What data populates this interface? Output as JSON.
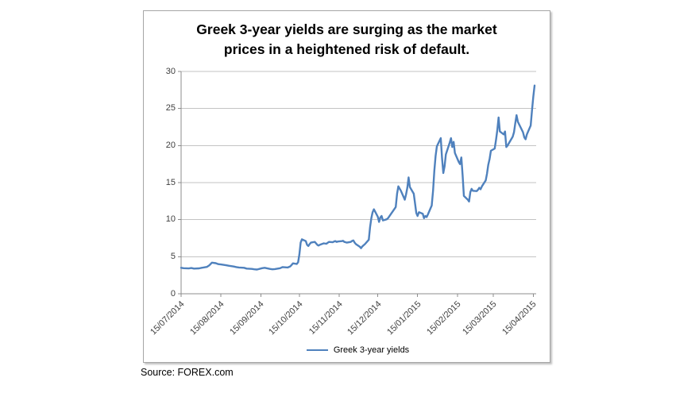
{
  "figure": {
    "title_lines": [
      "Greek 3-year yields are surging as the market",
      "prices in a heightened risk of default."
    ],
    "source": "Source: FOREX.com"
  },
  "chart_data": {
    "type": "line",
    "title": "Greek 3-year yields are surging as the market prices in a heightened risk of default.",
    "xlabel": "",
    "ylabel": "",
    "ylim": [
      0,
      30
    ],
    "ytick_step": 5,
    "grid": "horizontal",
    "legend_position": "bottom",
    "line_color": "#4F81BD",
    "axis_color": "#8c8c8c",
    "grid_color": "#c3c3c3",
    "x_ticks": [
      "15/07/2014",
      "15/08/2014",
      "15/09/2014",
      "15/10/2014",
      "15/11/2014",
      "15/12/2014",
      "15/01/2015",
      "15/02/2015",
      "15/03/2015",
      "15/04/2015"
    ],
    "x_range": [
      "15/07/2014",
      "16/04/2015"
    ],
    "series": [
      {
        "name": "Greek 3-year yields",
        "color": "#4F81BD",
        "points": [
          [
            "15/07/2014",
            3.5
          ],
          [
            "17/07/2014",
            3.45
          ],
          [
            "21/07/2014",
            3.42
          ],
          [
            "23/07/2014",
            3.47
          ],
          [
            "25/07/2014",
            3.4
          ],
          [
            "29/07/2014",
            3.43
          ],
          [
            "31/07/2014",
            3.5
          ],
          [
            "04/08/2014",
            3.62
          ],
          [
            "06/08/2014",
            3.85
          ],
          [
            "08/08/2014",
            4.2
          ],
          [
            "11/08/2014",
            4.12
          ],
          [
            "13/08/2014",
            4.0
          ],
          [
            "15/08/2014",
            3.95
          ],
          [
            "19/08/2014",
            3.85
          ],
          [
            "21/08/2014",
            3.78
          ],
          [
            "25/08/2014",
            3.68
          ],
          [
            "27/08/2014",
            3.6
          ],
          [
            "29/08/2014",
            3.55
          ],
          [
            "02/09/2014",
            3.5
          ],
          [
            "04/09/2014",
            3.4
          ],
          [
            "08/09/2014",
            3.35
          ],
          [
            "10/09/2014",
            3.3
          ],
          [
            "12/09/2014",
            3.27
          ],
          [
            "16/09/2014",
            3.45
          ],
          [
            "18/09/2014",
            3.5
          ],
          [
            "22/09/2014",
            3.35
          ],
          [
            "24/09/2014",
            3.3
          ],
          [
            "26/09/2014",
            3.33
          ],
          [
            "30/09/2014",
            3.45
          ],
          [
            "02/10/2014",
            3.6
          ],
          [
            "06/10/2014",
            3.55
          ],
          [
            "08/10/2014",
            3.7
          ],
          [
            "09/10/2014",
            3.9
          ],
          [
            "10/10/2014",
            4.1
          ],
          [
            "13/10/2014",
            4.02
          ],
          [
            "14/10/2014",
            4.25
          ],
          [
            "15/10/2014",
            5.3
          ],
          [
            "16/10/2014",
            6.9
          ],
          [
            "17/10/2014",
            7.35
          ],
          [
            "20/10/2014",
            7.1
          ],
          [
            "21/10/2014",
            6.6
          ],
          [
            "22/10/2014",
            6.45
          ],
          [
            "23/10/2014",
            6.7
          ],
          [
            "24/10/2014",
            6.9
          ],
          [
            "27/10/2014",
            7.0
          ],
          [
            "28/10/2014",
            6.8
          ],
          [
            "29/10/2014",
            6.6
          ],
          [
            "30/10/2014",
            6.5
          ],
          [
            "31/10/2014",
            6.62
          ],
          [
            "03/11/2014",
            6.8
          ],
          [
            "05/11/2014",
            6.75
          ],
          [
            "07/11/2014",
            7.0
          ],
          [
            "10/11/2014",
            6.95
          ],
          [
            "11/11/2014",
            7.05
          ],
          [
            "12/11/2014",
            7.1
          ],
          [
            "13/11/2014",
            7.0
          ],
          [
            "14/11/2014",
            7.05
          ],
          [
            "17/11/2014",
            7.1
          ],
          [
            "18/11/2014",
            7.15
          ],
          [
            "19/11/2014",
            7.0
          ],
          [
            "20/11/2014",
            6.95
          ],
          [
            "21/11/2014",
            6.9
          ],
          [
            "24/11/2014",
            7.0
          ],
          [
            "25/11/2014",
            7.12
          ],
          [
            "26/11/2014",
            7.2
          ],
          [
            "27/11/2014",
            6.9
          ],
          [
            "28/11/2014",
            6.7
          ],
          [
            "01/12/2014",
            6.35
          ],
          [
            "02/12/2014",
            6.15
          ],
          [
            "03/12/2014",
            6.4
          ],
          [
            "04/12/2014",
            6.55
          ],
          [
            "05/12/2014",
            6.7
          ],
          [
            "08/12/2014",
            7.3
          ],
          [
            "09/12/2014",
            9.0
          ],
          [
            "10/12/2014",
            10.2
          ],
          [
            "11/12/2014",
            11.0
          ],
          [
            "12/12/2014",
            11.4
          ],
          [
            "15/12/2014",
            10.4
          ],
          [
            "16/12/2014",
            9.7
          ],
          [
            "17/12/2014",
            10.3
          ],
          [
            "18/12/2014",
            10.5
          ],
          [
            "19/12/2014",
            9.9
          ],
          [
            "22/12/2014",
            10.05
          ],
          [
            "23/12/2014",
            10.2
          ],
          [
            "29/12/2014",
            11.7
          ],
          [
            "30/12/2014",
            13.5
          ],
          [
            "31/12/2014",
            14.5
          ],
          [
            "02/01/2015",
            13.9
          ],
          [
            "05/01/2015",
            12.7
          ],
          [
            "06/01/2015",
            13.4
          ],
          [
            "07/01/2015",
            14.3
          ],
          [
            "08/01/2015",
            15.7
          ],
          [
            "09/01/2015",
            14.4
          ],
          [
            "12/01/2015",
            13.5
          ],
          [
            "13/01/2015",
            12.2
          ],
          [
            "14/01/2015",
            10.9
          ],
          [
            "15/01/2015",
            10.5
          ],
          [
            "16/01/2015",
            11.0
          ],
          [
            "19/01/2015",
            10.8
          ],
          [
            "20/01/2015",
            10.2
          ],
          [
            "21/01/2015",
            10.5
          ],
          [
            "22/01/2015",
            10.35
          ],
          [
            "23/01/2015",
            10.7
          ],
          [
            "26/01/2015",
            11.9
          ],
          [
            "27/01/2015",
            13.9
          ],
          [
            "28/01/2015",
            16.6
          ],
          [
            "29/01/2015",
            18.6
          ],
          [
            "30/01/2015",
            19.9
          ],
          [
            "02/02/2015",
            21.0
          ],
          [
            "03/02/2015",
            18.3
          ],
          [
            "04/02/2015",
            16.3
          ],
          [
            "05/02/2015",
            17.2
          ],
          [
            "06/02/2015",
            18.8
          ],
          [
            "09/02/2015",
            20.4
          ],
          [
            "10/02/2015",
            21.0
          ],
          [
            "11/02/2015",
            19.8
          ],
          [
            "12/02/2015",
            20.5
          ],
          [
            "13/02/2015",
            19.0
          ],
          [
            "16/02/2015",
            17.8
          ],
          [
            "17/02/2015",
            17.5
          ],
          [
            "18/02/2015",
            18.4
          ],
          [
            "19/02/2015",
            16.0
          ],
          [
            "20/02/2015",
            13.2
          ],
          [
            "23/02/2015",
            12.7
          ],
          [
            "24/02/2015",
            12.45
          ],
          [
            "25/02/2015",
            13.7
          ],
          [
            "26/02/2015",
            14.15
          ],
          [
            "27/02/2015",
            13.9
          ],
          [
            "02/03/2015",
            13.85
          ],
          [
            "03/03/2015",
            14.05
          ],
          [
            "04/03/2015",
            14.3
          ],
          [
            "05/03/2015",
            14.1
          ],
          [
            "06/03/2015",
            14.5
          ],
          [
            "09/03/2015",
            15.3
          ],
          [
            "10/03/2015",
            16.2
          ],
          [
            "11/03/2015",
            17.4
          ],
          [
            "12/03/2015",
            18.2
          ],
          [
            "13/03/2015",
            19.3
          ],
          [
            "16/03/2015",
            19.6
          ],
          [
            "17/03/2015",
            20.8
          ],
          [
            "18/03/2015",
            22.1
          ],
          [
            "19/03/2015",
            23.8
          ],
          [
            "20/03/2015",
            21.9
          ],
          [
            "23/03/2015",
            21.5
          ],
          [
            "24/03/2015",
            21.9
          ],
          [
            "25/03/2015",
            19.8
          ],
          [
            "26/03/2015",
            20.0
          ],
          [
            "27/03/2015",
            20.3
          ],
          [
            "30/03/2015",
            21.2
          ],
          [
            "31/03/2015",
            21.8
          ],
          [
            "01/04/2015",
            23.0
          ],
          [
            "02/04/2015",
            24.1
          ],
          [
            "03/04/2015",
            23.2
          ],
          [
            "07/04/2015",
            21.8
          ],
          [
            "08/04/2015",
            21.1
          ],
          [
            "09/04/2015",
            20.85
          ],
          [
            "10/04/2015",
            21.5
          ],
          [
            "13/04/2015",
            22.7
          ],
          [
            "14/04/2015",
            24.8
          ],
          [
            "15/04/2015",
            26.6
          ],
          [
            "16/04/2015",
            28.1
          ]
        ]
      }
    ]
  },
  "legend": {
    "label": "Greek 3-year yields"
  },
  "colors": {
    "line": "#4F81BD",
    "grid": "#c3c3c3",
    "axis": "#8c8c8c"
  }
}
